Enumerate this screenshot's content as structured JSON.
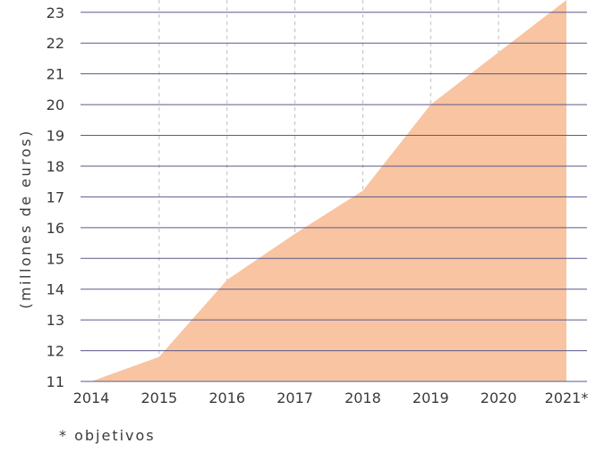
{
  "chart_data": {
    "type": "area",
    "x": [
      "2014",
      "2015",
      "2016",
      "2017",
      "2018",
      "2019",
      "2020",
      "2021*"
    ],
    "series": [
      {
        "values": [
          11.0,
          11.8,
          14.3,
          15.8,
          17.2,
          20.0,
          21.7,
          23.4
        ]
      }
    ],
    "ylabel": "(millones de euros)",
    "ylim": [
      11,
      23.4
    ],
    "yticks": [
      11,
      12,
      13,
      14,
      15,
      16,
      17,
      18,
      19,
      20,
      21,
      22,
      23
    ],
    "footnote": "* objetivos",
    "colors": {
      "fill": "#f8c4a1",
      "gridline": "#5a5a8a",
      "xgrid": "#bdbdbd"
    },
    "grid": true
  }
}
